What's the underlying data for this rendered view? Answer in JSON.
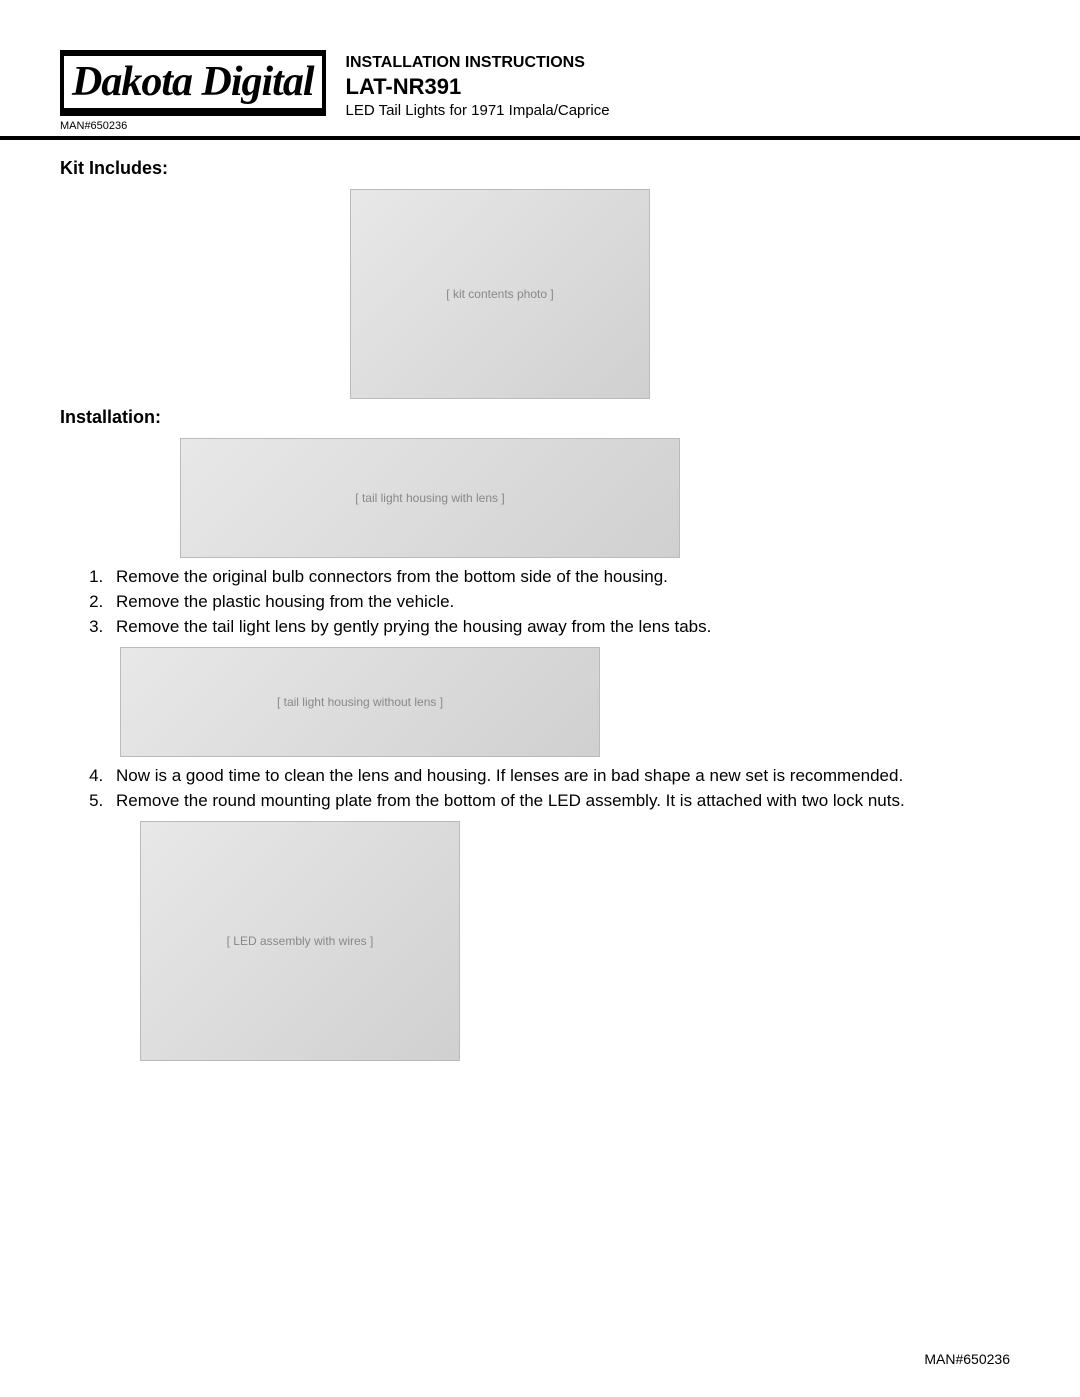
{
  "brand": "Dakota Digital",
  "header": {
    "instructions_label": "INSTALLATION INSTRUCTIONS",
    "product_code": "LAT-NR391",
    "product_desc": "LED Tail Lights for 1971 Impala/Caprice"
  },
  "man_number": "MAN#650236",
  "sections": {
    "kit_title": "Kit Includes:",
    "install_title": "Installation:"
  },
  "steps": {
    "s1": "Remove the original bulb connectors from the bottom side of the housing.",
    "s2": "Remove the plastic housing from the vehicle.",
    "s3": "Remove the tail light lens by gently prying the housing away from the lens tabs.",
    "s4": "Now is a good time to clean the lens and housing. If lenses are in bad shape a new set is recommended.",
    "s5": "Remove the round mounting plate from the bottom of the LED assembly.  It is attached with two lock nuts."
  },
  "image_placeholders": {
    "kit": "[ kit contents photo ]",
    "housing1": "[ tail light housing with lens ]",
    "housing2": "[ tail light housing without lens ]",
    "led": "[ LED assembly with wires ]"
  },
  "colors": {
    "text": "#000000",
    "background": "#ffffff",
    "placeholder_bg": "#e0e0e0"
  },
  "typography": {
    "body_font": "Arial",
    "logo_font": "Times New Roman",
    "body_size_pt": 13,
    "title_size_pt": 14,
    "product_code_size_pt": 17
  }
}
